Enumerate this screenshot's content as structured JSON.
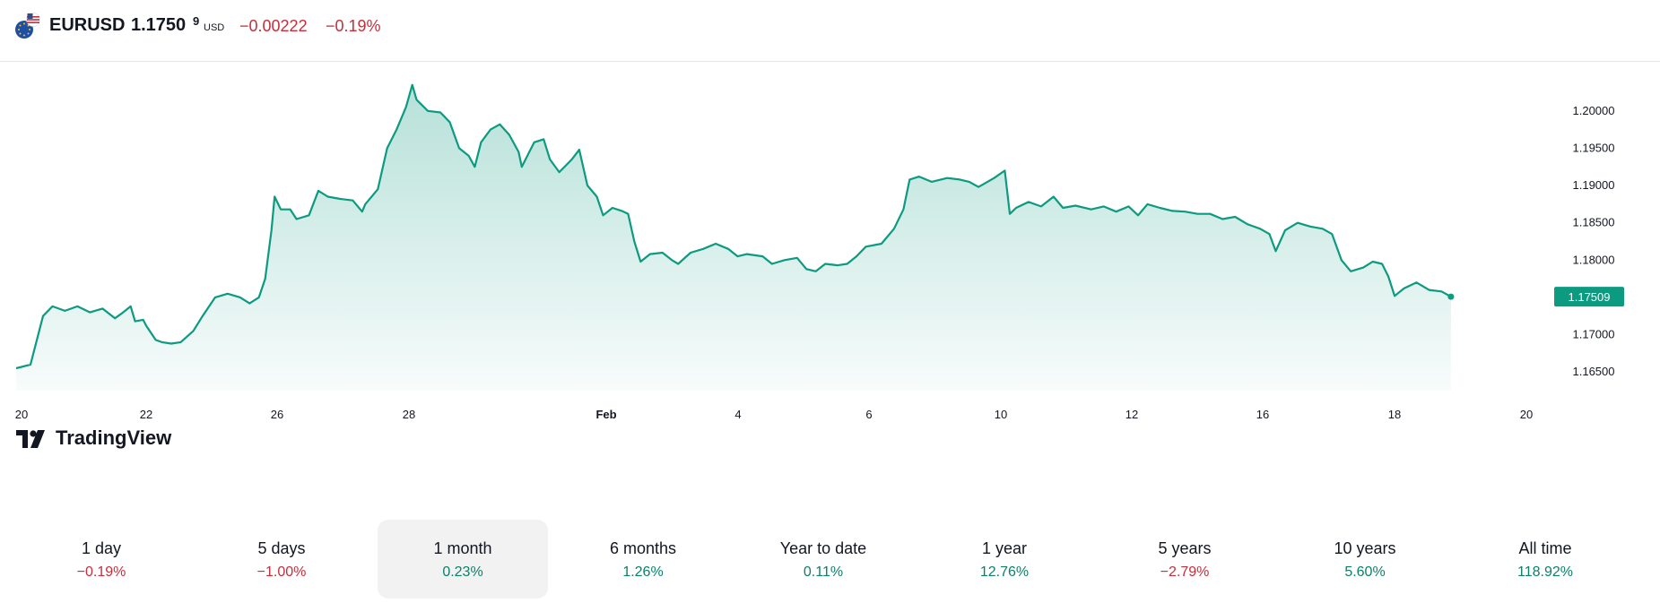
{
  "header": {
    "symbol": "EURUSD",
    "price_main": "1.1750",
    "price_sup": "9",
    "currency": "USD",
    "change": "−0.00222",
    "change_pct": "−0.19%"
  },
  "brand": {
    "logo_text": "TradingView"
  },
  "colors": {
    "line": "#0c9a80",
    "negative": "#c52e3b",
    "positive": "#0c806b",
    "price_badge": "#0c9a80"
  },
  "chart_data": {
    "type": "area",
    "ylim": [
      1.1625,
      1.2055
    ],
    "y_ticks": [
      "1.20000",
      "1.19500",
      "1.19000",
      "1.18500",
      "1.18000",
      "1.17500",
      "1.17000",
      "1.16500"
    ],
    "y_tick_values": [
      1.2,
      1.195,
      1.19,
      1.185,
      1.18,
      1.175,
      1.17,
      1.165
    ],
    "x_ticks": [
      {
        "label": "20",
        "day": 0,
        "bold": false
      },
      {
        "label": "22",
        "day": 2,
        "bold": false
      },
      {
        "label": "26",
        "day": 4,
        "bold": false
      },
      {
        "label": "28",
        "day": 6,
        "bold": false
      },
      {
        "label": "Feb",
        "day": 9,
        "bold": true
      },
      {
        "label": "4",
        "day": 11,
        "bold": false
      },
      {
        "label": "6",
        "day": 13,
        "bold": false
      },
      {
        "label": "10",
        "day": 15,
        "bold": false
      },
      {
        "label": "12",
        "day": 17,
        "bold": false
      },
      {
        "label": "16",
        "day": 19,
        "bold": false
      },
      {
        "label": "18",
        "day": 21,
        "bold": false
      },
      {
        "label": "20",
        "day": 23,
        "bold": false
      }
    ],
    "last_price_label": "1.17509",
    "x_range_days": [
      -0.08,
      24.5
    ],
    "series": [
      {
        "values": [
          [
            -0.08,
            1.1655
          ],
          [
            0.15,
            1.166
          ],
          [
            0.35,
            1.1725
          ],
          [
            0.5,
            1.1738
          ],
          [
            0.7,
            1.1732
          ],
          [
            0.9,
            1.1738
          ],
          [
            1.1,
            1.173
          ],
          [
            1.3,
            1.1735
          ],
          [
            1.5,
            1.1722
          ],
          [
            1.6,
            1.1728
          ],
          [
            1.75,
            1.1738
          ],
          [
            1.82,
            1.1718
          ],
          [
            1.95,
            1.172
          ],
          [
            2.0,
            1.1712
          ],
          [
            2.15,
            1.1693
          ],
          [
            2.25,
            1.169
          ],
          [
            2.4,
            1.1688
          ],
          [
            2.55,
            1.169
          ],
          [
            2.75,
            1.1705
          ],
          [
            2.9,
            1.1725
          ],
          [
            3.1,
            1.175
          ],
          [
            3.3,
            1.1755
          ],
          [
            3.5,
            1.175
          ],
          [
            3.65,
            1.1742
          ],
          [
            3.8,
            1.175
          ],
          [
            3.9,
            1.1775
          ],
          [
            4.0,
            1.184
          ],
          [
            4.05,
            1.1885
          ],
          [
            4.15,
            1.1868
          ],
          [
            4.3,
            1.1868
          ],
          [
            4.4,
            1.1855
          ],
          [
            4.6,
            1.186
          ],
          [
            4.75,
            1.1893
          ],
          [
            4.9,
            1.1885
          ],
          [
            5.1,
            1.1882
          ],
          [
            5.3,
            1.188
          ],
          [
            5.45,
            1.1865
          ],
          [
            5.5,
            1.1875
          ],
          [
            5.7,
            1.1895
          ],
          [
            5.85,
            1.195
          ],
          [
            6.0,
            1.1975
          ],
          [
            6.15,
            1.2005
          ],
          [
            6.25,
            1.2035
          ],
          [
            6.32,
            1.2015
          ],
          [
            6.5,
            1.2
          ],
          [
            6.7,
            1.1998
          ],
          [
            6.85,
            1.1985
          ],
          [
            7.0,
            1.195
          ],
          [
            7.15,
            1.194
          ],
          [
            7.25,
            1.1925
          ],
          [
            7.35,
            1.1958
          ],
          [
            7.5,
            1.1975
          ],
          [
            7.65,
            1.1982
          ],
          [
            7.8,
            1.1968
          ],
          [
            7.95,
            1.1945
          ],
          [
            8.0,
            1.1925
          ],
          [
            8.2,
            1.1958
          ],
          [
            8.35,
            1.1962
          ],
          [
            8.45,
            1.1935
          ],
          [
            8.6,
            1.1918
          ],
          [
            8.8,
            1.1935
          ],
          [
            8.92,
            1.1948
          ],
          [
            9.05,
            1.19
          ],
          [
            9.2,
            1.1885
          ],
          [
            9.3,
            1.186
          ],
          [
            9.45,
            1.187
          ],
          [
            9.6,
            1.1866
          ],
          [
            9.7,
            1.1862
          ],
          [
            9.8,
            1.1825
          ],
          [
            9.9,
            1.1798
          ],
          [
            10.05,
            1.1808
          ],
          [
            10.25,
            1.181
          ],
          [
            10.4,
            1.18
          ],
          [
            10.5,
            1.1795
          ],
          [
            10.7,
            1.181
          ],
          [
            10.9,
            1.1815
          ],
          [
            11.1,
            1.1822
          ],
          [
            11.3,
            1.1815
          ],
          [
            11.45,
            1.1805
          ],
          [
            11.6,
            1.1808
          ],
          [
            11.85,
            1.1805
          ],
          [
            12.0,
            1.1795
          ],
          [
            12.2,
            1.18
          ],
          [
            12.4,
            1.1803
          ],
          [
            12.55,
            1.1788
          ],
          [
            12.7,
            1.1785
          ],
          [
            12.85,
            1.1795
          ],
          [
            13.05,
            1.1793
          ],
          [
            13.2,
            1.1795
          ],
          [
            13.35,
            1.1805
          ],
          [
            13.5,
            1.1818
          ],
          [
            13.75,
            1.1822
          ],
          [
            13.95,
            1.1842
          ],
          [
            14.1,
            1.1868
          ],
          [
            14.2,
            1.1908
          ],
          [
            14.35,
            1.1912
          ],
          [
            14.55,
            1.1905
          ],
          [
            14.8,
            1.191
          ],
          [
            15.0,
            1.1908
          ],
          [
            15.15,
            1.1905
          ],
          [
            15.3,
            1.1898
          ],
          [
            15.55,
            1.191
          ],
          [
            15.72,
            1.192
          ],
          [
            15.8,
            1.1862
          ],
          [
            15.9,
            1.187
          ],
          [
            16.1,
            1.1878
          ],
          [
            16.3,
            1.1872
          ],
          [
            16.5,
            1.1885
          ],
          [
            16.65,
            1.187
          ],
          [
            16.85,
            1.1873
          ],
          [
            17.1,
            1.1868
          ],
          [
            17.3,
            1.1872
          ],
          [
            17.5,
            1.1865
          ],
          [
            17.7,
            1.1872
          ],
          [
            17.85,
            1.186
          ],
          [
            18.0,
            1.1875
          ],
          [
            18.2,
            1.187
          ],
          [
            18.4,
            1.1866
          ],
          [
            18.6,
            1.1865
          ],
          [
            18.8,
            1.1862
          ],
          [
            19.0,
            1.1862
          ],
          [
            19.2,
            1.1855
          ],
          [
            19.4,
            1.1858
          ],
          [
            19.6,
            1.1848
          ],
          [
            19.8,
            1.1842
          ],
          [
            19.95,
            1.1835
          ],
          [
            20.05,
            1.1812
          ],
          [
            20.2,
            1.184
          ],
          [
            20.4,
            1.185
          ],
          [
            20.6,
            1.1845
          ],
          [
            20.8,
            1.1842
          ],
          [
            20.95,
            1.1835
          ],
          [
            21.1,
            1.18
          ],
          [
            21.25,
            1.1785
          ],
          [
            21.45,
            1.179
          ],
          [
            21.6,
            1.1798
          ],
          [
            21.75,
            1.1795
          ],
          [
            21.85,
            1.1778
          ],
          [
            21.95,
            1.1752
          ],
          [
            22.1,
            1.1762
          ],
          [
            22.3,
            1.177
          ],
          [
            22.5,
            1.176
          ],
          [
            22.7,
            1.1758
          ],
          [
            22.85,
            1.1751
          ]
        ]
      }
    ]
  },
  "periods": [
    {
      "label": "1 day",
      "value": "−0.19%",
      "trend": "neg",
      "active": false
    },
    {
      "label": "5 days",
      "value": "−1.00%",
      "trend": "neg",
      "active": false
    },
    {
      "label": "1 month",
      "value": "0.23%",
      "trend": "pos",
      "active": true
    },
    {
      "label": "6 months",
      "value": "1.26%",
      "trend": "pos",
      "active": false
    },
    {
      "label": "Year to date",
      "value": "0.11%",
      "trend": "pos",
      "active": false
    },
    {
      "label": "1 year",
      "value": "12.76%",
      "trend": "pos",
      "active": false
    },
    {
      "label": "5 years",
      "value": "−2.79%",
      "trend": "neg",
      "active": false
    },
    {
      "label": "10 years",
      "value": "5.60%",
      "trend": "pos",
      "active": false
    },
    {
      "label": "All time",
      "value": "118.92%",
      "trend": "pos",
      "active": false
    }
  ]
}
